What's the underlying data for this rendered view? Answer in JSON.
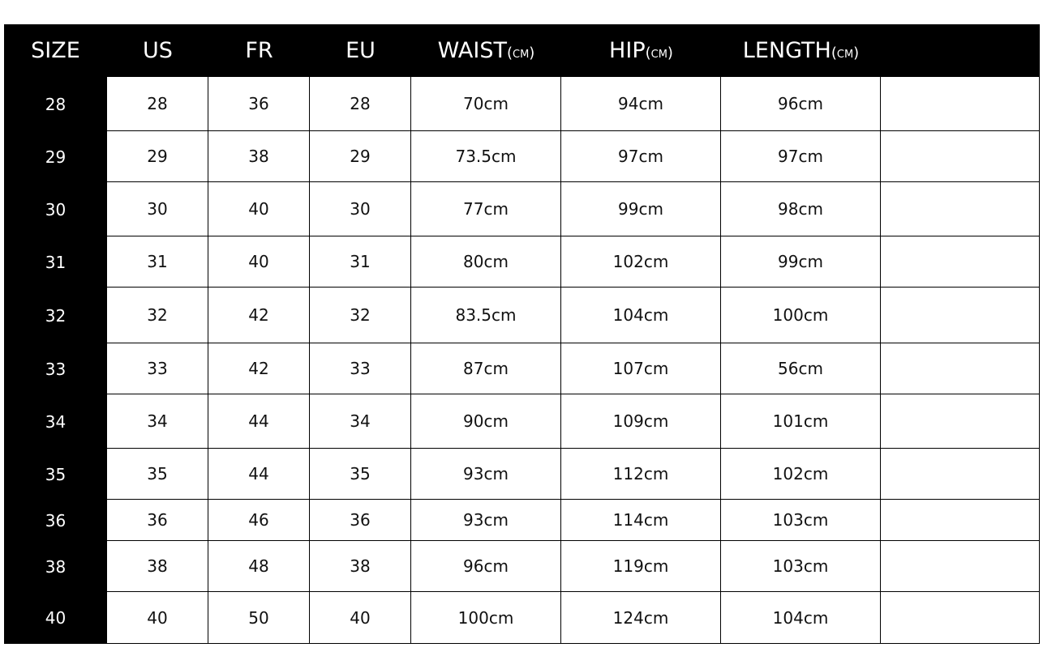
{
  "table": {
    "headers": [
      {
        "label": "SIZE"
      },
      {
        "label": "US"
      },
      {
        "label": "FR"
      },
      {
        "label": "EU"
      },
      {
        "label": "WAIST",
        "unit": "(CM)"
      },
      {
        "label": "HIP",
        "unit": "(CM)"
      },
      {
        "label": "LENGTH",
        "unit": "(CM)"
      }
    ],
    "rows": [
      [
        "28",
        "28",
        "36",
        "28",
        "70cm",
        "94cm",
        "96cm"
      ],
      [
        "29",
        "29",
        "38",
        "29",
        "73.5cm",
        "97cm",
        "97cm"
      ],
      [
        "30",
        "30",
        "40",
        "30",
        "77cm",
        "99cm",
        "98cm"
      ],
      [
        "31",
        "31",
        "40",
        "31",
        "80cm",
        "102cm",
        "99cm"
      ],
      [
        "32",
        "32",
        "42",
        "32",
        "83.5cm",
        "104cm",
        "100cm"
      ],
      [
        "33",
        "33",
        "42",
        "33",
        "87cm",
        "107cm",
        "56cm"
      ],
      [
        "34",
        "34",
        "44",
        "34",
        "90cm",
        "109cm",
        "101cm"
      ],
      [
        "35",
        "35",
        "44",
        "35",
        "93cm",
        "112cm",
        "102cm"
      ],
      [
        "36",
        "36",
        "46",
        "36",
        "93cm",
        "114cm",
        "103cm"
      ],
      [
        "38",
        "38",
        "48",
        "38",
        "96cm",
        "119cm",
        "103cm"
      ],
      [
        "40",
        "40",
        "50",
        "40",
        "100cm",
        "124cm",
        "104cm"
      ]
    ]
  }
}
